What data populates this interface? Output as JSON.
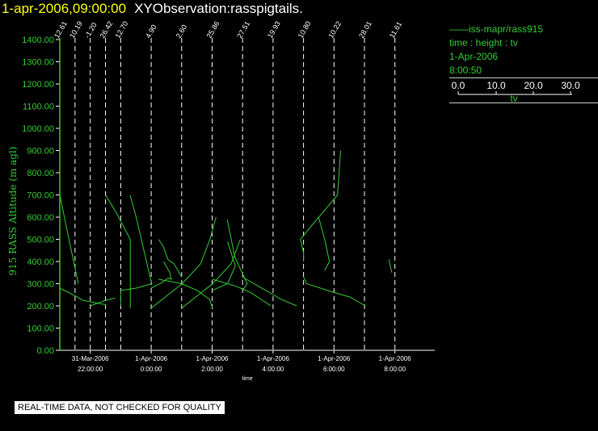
{
  "header": {
    "date": "1-apr-2006,09:00:00",
    "name": "XYObservation:rasspigtails."
  },
  "legend": {
    "series": "iss-mapr/rass915",
    "axes": "time : height : tv",
    "date": "1-Apr-2006",
    "time": "8:00:50",
    "scale_ticks": [
      "0.0",
      "10.0",
      "20.0",
      "30.0"
    ],
    "scale_label": "tv"
  },
  "footer": {
    "quality_note": "REAL-TIME DATA, NOT CHECKED FOR QUALITY"
  },
  "colors": {
    "trace": "#33cc33",
    "text_white": "#ffffff",
    "title_yellow": "#ffff00",
    "background": "#000000"
  },
  "chart_data": {
    "type": "line",
    "ylabel": "915 RASS Altitude (m agl)",
    "xlabel": "time",
    "ylim": [
      0,
      1400
    ],
    "yticks": [
      "0.00",
      "100.00",
      "200.00",
      "300.00",
      "400.00",
      "500.00",
      "600.00",
      "700.00",
      "800.00",
      "900.00",
      "1000.00",
      "1100.00",
      "1200.00",
      "1300.00",
      "1400.00"
    ],
    "xticks": [
      {
        "t": "2006-03-31T22:00",
        "date": "31-Mar-2006",
        "time": "22:00:00"
      },
      {
        "t": "2006-04-01T00:00",
        "date": "1-Apr-2006",
        "time": "0:00:00"
      },
      {
        "t": "2006-04-01T02:00",
        "date": "1-Apr-2006",
        "time": "2:00:00"
      },
      {
        "t": "2006-04-01T04:00",
        "date": "1-Apr-2006",
        "time": "4:00:00"
      },
      {
        "t": "2006-04-01T06:00",
        "date": "1-Apr-2006",
        "time": "6:00:00"
      },
      {
        "t": "2006-04-01T08:00",
        "date": "1-Apr-2006",
        "time": "8:00:00"
      }
    ],
    "profiles": [
      {
        "t": "2006-03-31T21:00",
        "label": "12.61",
        "points": [
          [
            0,
            700
          ],
          [
            0.5,
            530
          ],
          [
            1.2,
            300
          ]
        ]
      },
      {
        "t": "2006-03-31T21:00",
        "label": "",
        "points": [
          [
            0,
            280
          ],
          [
            1.0,
            245
          ],
          [
            1.5,
            225
          ],
          [
            3.0,
            205
          ]
        ]
      },
      {
        "t": "2006-03-31T21:30",
        "label": "10.19",
        "points": []
      },
      {
        "t": "2006-03-31T22:00",
        "label": "-1.20",
        "points": [
          [
            0,
            200
          ],
          [
            1.0,
            225
          ],
          [
            1.6,
            235
          ]
        ]
      },
      {
        "t": "2006-03-31T22:30",
        "label": "26.42",
        "points": [
          [
            0,
            700
          ],
          [
            0.7,
            620
          ],
          [
            1.6,
            500
          ],
          [
            1.6,
            190
          ]
        ]
      },
      {
        "t": "2006-03-31T23:00",
        "label": "12.70",
        "points": [
          [
            0,
            200
          ],
          [
            0,
            270
          ],
          [
            1.0,
            280
          ],
          [
            2.0,
            300
          ],
          [
            1.5,
            450
          ],
          [
            1.0,
            600
          ],
          [
            0.6,
            700
          ]
        ]
      },
      {
        "t": "2006-04-01T00:00",
        "label": "4.90",
        "points": [
          [
            0,
            190
          ],
          [
            2.0,
            300
          ],
          [
            3.2,
            390
          ],
          [
            3.8,
            500
          ],
          [
            4.2,
            600
          ]
        ]
      },
      {
        "t": "2006-04-01T00:00",
        "label": "",
        "points": [
          [
            0,
            280
          ],
          [
            0.7,
            305
          ],
          [
            1.1,
            325
          ],
          [
            1.3,
            320
          ],
          [
            1.2,
            350
          ],
          [
            0.8,
            400
          ]
        ]
      },
      {
        "t": "2006-04-01T01:00",
        "label": "2.60",
        "points": [
          [
            0,
            190
          ],
          [
            2.0,
            300
          ],
          [
            3.2,
            390
          ],
          [
            3.8,
            500
          ]
        ]
      },
      {
        "t": "2006-04-01T01:00",
        "label": "",
        "points": [
          [
            0,
            330
          ],
          [
            -0.5,
            390
          ],
          [
            -0.9,
            410
          ],
          [
            -1.2,
            470
          ],
          [
            -1.5,
            500
          ]
        ]
      },
      {
        "t": "2006-04-01T01:00",
        "label": "",
        "points": [
          [
            -1.5,
            320
          ],
          [
            0,
            300
          ],
          [
            1.0,
            270
          ],
          [
            1.8,
            230
          ],
          [
            2.0,
            190
          ]
        ]
      },
      {
        "t": "2006-04-01T02:00",
        "label": "25.86",
        "points": [
          [
            0,
            270
          ],
          [
            1.0,
            300
          ],
          [
            1.5,
            380
          ],
          [
            1.0,
            490
          ]
        ]
      },
      {
        "t": "2006-04-01T02:00",
        "label": "",
        "points": [
          [
            0,
            320
          ],
          [
            1.5,
            290
          ],
          [
            2.5,
            260
          ],
          [
            3.8,
            200
          ]
        ]
      },
      {
        "t": "2006-04-01T03:00",
        "label": "27.51",
        "points": [
          [
            0,
            270
          ],
          [
            0.3,
            300
          ],
          [
            -0.5,
            420
          ],
          [
            -1.0,
            590
          ]
        ]
      },
      {
        "t": "2006-04-01T03:00",
        "label": "",
        "points": [
          [
            0,
            330
          ],
          [
            1.5,
            270
          ],
          [
            2.5,
            230
          ],
          [
            3.5,
            200
          ]
        ]
      },
      {
        "t": "2006-04-01T04:00",
        "label": "19.93",
        "points": []
      },
      {
        "t": "2006-04-01T05:00",
        "label": "10.80",
        "points": [
          [
            0,
            400
          ],
          [
            0,
            440
          ],
          [
            -0.2,
            500
          ],
          [
            0.5,
            560
          ],
          [
            2.2,
            700
          ],
          [
            2.3,
            800
          ],
          [
            2.4,
            900
          ]
        ]
      },
      {
        "t": "2006-04-01T05:00",
        "label": "",
        "points": [
          [
            0,
            330
          ],
          [
            0.2,
            300
          ],
          [
            2.0,
            260
          ],
          [
            3.0,
            240
          ],
          [
            4.0,
            200
          ]
        ]
      },
      {
        "t": "2006-04-01T06:00",
        "label": "10.22",
        "points": [
          [
            -0.6,
            360
          ],
          [
            -0.3,
            400
          ],
          [
            -0.6,
            500
          ],
          [
            -1.0,
            600
          ]
        ]
      },
      {
        "t": "2006-04-01T07:00",
        "label": "28.01",
        "points": []
      },
      {
        "t": "2006-04-01T08:00",
        "label": "11.61",
        "points": [
          [
            -0.2,
            350
          ],
          [
            -0.4,
            410
          ]
        ]
      }
    ],
    "legend": "right"
  }
}
